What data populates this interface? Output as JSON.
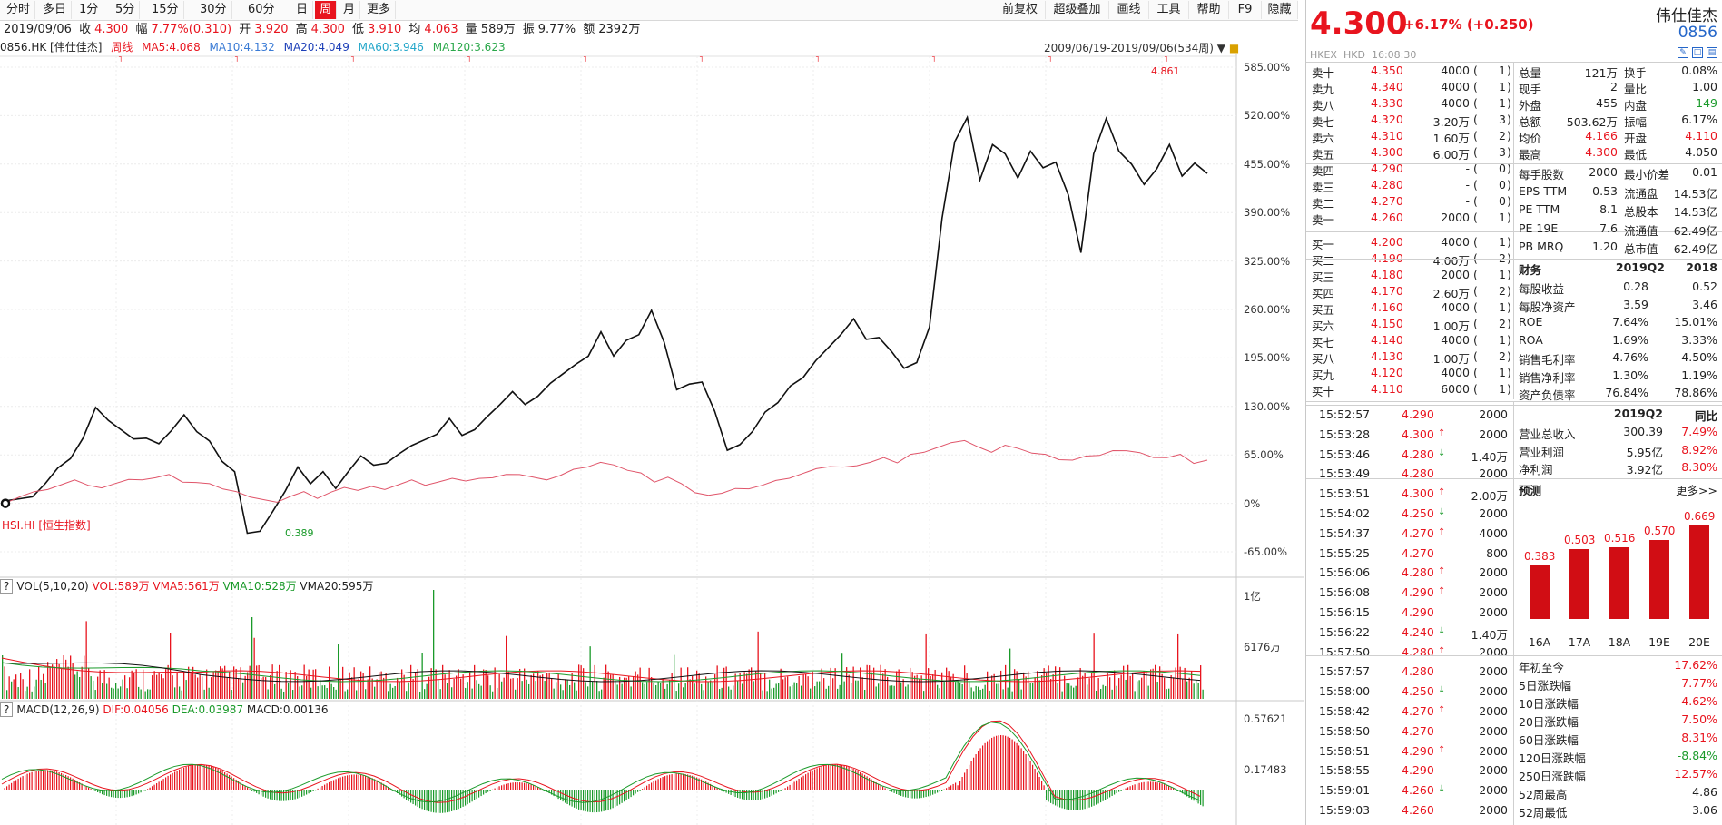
{
  "toolbar": {
    "left": [
      "分时",
      "多日",
      "1分",
      "5分",
      "15分",
      "30分",
      "60分",
      "日",
      "周",
      "月",
      "更多"
    ],
    "active": "周",
    "right": [
      "前复权",
      "超级叠加",
      "画线",
      "工具",
      "帮助",
      "F9",
      "隐藏"
    ]
  },
  "quote": {
    "date": "2019/09/06",
    "close_label": "收",
    "close": "4.300",
    "chg_label": "幅",
    "chg": "7.77%(0.310)",
    "open_label": "开",
    "open": "3.920",
    "high_label": "高",
    "high": "4.300",
    "low_label": "低",
    "low": "3.910",
    "avg_label": "均",
    "avg": "4.063",
    "vol_label": "量",
    "vol": "589万",
    "amp_label": "振",
    "amp": "9.77%",
    "amt_label": "额",
    "amt": "2392万"
  },
  "ma_legend": {
    "code": "0856.HK [伟仕佳杰]",
    "period": "周线",
    "ma5": "MA5:4.068",
    "ma10": "MA10:4.132",
    "ma20": "MA20:4.049",
    "ma60": "MA60:3.946",
    "ma120": "MA120:3.623"
  },
  "range_label": "2009/06/19-2019/09/06(534周)",
  "overlay_label": "HSI.HI [恒生指数]",
  "annotations": {
    "high": "4.861",
    "low": "0.389"
  },
  "price_axis": [
    "585.00%",
    "520.00%",
    "455.00%",
    "390.00%",
    "325.00%",
    "260.00%",
    "195.00%",
    "130.00%",
    "65.00%",
    "0%",
    "-65.00%"
  ],
  "vol_legend": {
    "q": "?",
    "name": "VOL(5,10,20)",
    "vol": "VOL:589万",
    "vma5": "VMA5:561万",
    "vma10": "VMA10:528万",
    "vma20": "VMA20:595万"
  },
  "vol_axis": [
    "1亿",
    "6176万"
  ],
  "macd_legend": {
    "q": "?",
    "name": "MACD(12,26,9)",
    "dif": "DIF:0.04056",
    "dea": "DEA:0.03987",
    "macd": "MACD:0.00136"
  },
  "macd_axis": [
    "0.57621",
    "0.17483"
  ],
  "chart_data": {
    "type": "line",
    "x_range": [
      "2009/06/19",
      "2019/09/06"
    ],
    "ylim_pct": [
      -65,
      585
    ],
    "series": [
      {
        "name": "0856.HK [伟仕佳杰]",
        "color": "#111111",
        "values": [
          0,
          5,
          10,
          30,
          45,
          60,
          90,
          125,
          110,
          100,
          90,
          85,
          80,
          100,
          115,
          95,
          85,
          60,
          40,
          -40,
          -35,
          -15,
          15,
          50,
          30,
          40,
          20,
          45,
          60,
          50,
          55,
          70,
          75,
          85,
          95,
          110,
          90,
          100,
          120,
          130,
          150,
          135,
          140,
          160,
          175,
          190,
          195,
          230,
          200,
          215,
          225,
          260,
          220,
          150,
          160,
          165,
          120,
          70,
          80,
          100,
          120,
          135,
          160,
          165,
          190,
          210,
          230,
          245,
          220,
          225,
          200,
          180,
          190,
          240,
          380,
          485,
          520,
          430,
          480,
          470,
          440,
          470,
          450,
          460,
          410,
          335,
          470,
          520,
          470,
          455,
          430,
          445,
          480,
          440,
          460,
          440
        ]
      },
      {
        "name": "HSI.HI [恒生指数]",
        "color": "#e0556a",
        "values": [
          0,
          10,
          15,
          20,
          25,
          30,
          25,
          20,
          28,
          32,
          30,
          35,
          38,
          30,
          28,
          25,
          20,
          15,
          10,
          5,
          0,
          10,
          15,
          8,
          15,
          20,
          18,
          22,
          20,
          25,
          30,
          25,
          28,
          35,
          30,
          32,
          35,
          38,
          40,
          35,
          30,
          38,
          45,
          50,
          55,
          50,
          45,
          40,
          30,
          35,
          25,
          15,
          10,
          15,
          20,
          18,
          25,
          30,
          35,
          40,
          45,
          50,
          48,
          52,
          55,
          60,
          55,
          65,
          70,
          75,
          80,
          85,
          75,
          70,
          78,
          72,
          68,
          65,
          60,
          58,
          62,
          65,
          70,
          72,
          68,
          60,
          62,
          65,
          55,
          58
        ]
      }
    ],
    "volume": {
      "ylim": [
        0,
        100000000
      ],
      "last": 5890000
    },
    "macd": {
      "dif": 0.04056,
      "dea": 0.03987,
      "macd": 0.00136
    }
  },
  "right": {
    "price": "4.300",
    "change": "+6.17% (+0.250)",
    "name": "伟仕佳杰",
    "code": "0856",
    "market": "HKEX",
    "currency": "HKD",
    "time": "16:08:30",
    "asks": [
      [
        "卖十",
        "4.350",
        "4000",
        "1"
      ],
      [
        "卖九",
        "4.340",
        "4000",
        "1"
      ],
      [
        "卖八",
        "4.330",
        "4000",
        "1"
      ],
      [
        "卖七",
        "4.320",
        "3.20万",
        "3"
      ],
      [
        "卖六",
        "4.310",
        "1.60万",
        "2"
      ],
      [
        "卖五",
        "4.300",
        "6.00万",
        "3"
      ],
      [
        "卖四",
        "4.290",
        "-",
        "0"
      ],
      [
        "卖三",
        "4.280",
        "-",
        "0"
      ],
      [
        "卖二",
        "4.270",
        "-",
        "0"
      ],
      [
        "卖一",
        "4.260",
        "2000",
        "1"
      ]
    ],
    "bids": [
      [
        "买一",
        "4.200",
        "4000",
        "1"
      ],
      [
        "买二",
        "4.190",
        "4.00万",
        "2"
      ],
      [
        "买三",
        "4.180",
        "2000",
        "1"
      ],
      [
        "买四",
        "4.170",
        "2.60万",
        "2"
      ],
      [
        "买五",
        "4.160",
        "4000",
        "1"
      ],
      [
        "买六",
        "4.150",
        "1.00万",
        "2"
      ],
      [
        "买七",
        "4.140",
        "4000",
        "1"
      ],
      [
        "买八",
        "4.130",
        "1.00万",
        "2"
      ],
      [
        "买九",
        "4.120",
        "4000",
        "1"
      ],
      [
        "买十",
        "4.110",
        "6000",
        "1"
      ]
    ],
    "stats": [
      [
        "总量",
        "121万",
        "换手",
        "0.08%"
      ],
      [
        "现手",
        "2",
        "量比",
        "1.00"
      ],
      [
        "外盘",
        "455",
        "内盘",
        "149"
      ],
      [
        "总额",
        "503.62万",
        "振幅",
        "6.17%"
      ],
      [
        "均价",
        "4.166",
        "开盘",
        "4.110"
      ],
      [
        "最高",
        "4.300",
        "最低",
        "4.050"
      ]
    ],
    "stats2": [
      [
        "每手股数",
        "2000",
        "最小价差",
        "0.01"
      ],
      [
        "EPS TTM",
        "0.53",
        "流通盘",
        "14.53亿"
      ],
      [
        "PE TTM",
        "8.1",
        "总股本",
        "14.53亿"
      ],
      [
        "PE 19E",
        "7.6",
        "流通值",
        "62.49亿"
      ],
      [
        "PB MRQ",
        "1.20",
        "总市值",
        "62.49亿"
      ]
    ],
    "fin_header": [
      "财务",
      "2019Q2",
      "2018"
    ],
    "fin": [
      [
        "每股收益",
        "0.28",
        "0.52"
      ],
      [
        "每股净资产",
        "3.59",
        "3.46"
      ],
      [
        "ROE",
        "7.64%",
        "15.01%"
      ],
      [
        "ROA",
        "1.69%",
        "3.33%"
      ],
      [
        "销售毛利率",
        "4.76%",
        "4.50%"
      ],
      [
        "销售净利率",
        "1.30%",
        "1.19%"
      ],
      [
        "资产负债率",
        "76.84%",
        "78.86%"
      ]
    ],
    "fin2_header": [
      "",
      "2019Q2",
      "同比"
    ],
    "fin2": [
      [
        "营业总收入",
        "300.39",
        "7.49%"
      ],
      [
        "营业利润",
        "5.95亿",
        "8.92%"
      ],
      [
        "净利润",
        "3.92亿",
        "8.30%"
      ]
    ],
    "forecast_title": "预测",
    "forecast_more": "更多>>",
    "forecast": [
      {
        "label": "16A",
        "value": 0.383
      },
      {
        "label": "17A",
        "value": 0.503
      },
      {
        "label": "18A",
        "value": 0.516
      },
      {
        "label": "19E",
        "value": 0.57
      },
      {
        "label": "20E",
        "value": 0.669
      }
    ],
    "perf": [
      [
        "年初至今",
        "17.62%"
      ],
      [
        "5日涨跌幅",
        "7.77%"
      ],
      [
        "10日涨跌幅",
        "4.62%"
      ],
      [
        "20日涨跌幅",
        "7.50%"
      ],
      [
        "60日涨跌幅",
        "8.31%"
      ],
      [
        "120日涨跌幅",
        "-8.84%"
      ],
      [
        "250日涨跌幅",
        "12.57%"
      ],
      [
        "52周最高",
        "4.86"
      ],
      [
        "52周最低",
        "3.06"
      ]
    ],
    "ticks": [
      [
        "15:52:57",
        "4.290",
        "",
        "2000"
      ],
      [
        "15:53:28",
        "4.300",
        "up",
        "2000"
      ],
      [
        "15:53:46",
        "4.280",
        "down",
        "1.40万"
      ],
      [
        "15:53:49",
        "4.280",
        "",
        "2000"
      ],
      [
        "15:53:51",
        "4.300",
        "up",
        "2.00万"
      ],
      [
        "15:54:02",
        "4.250",
        "down",
        "2000"
      ],
      [
        "15:54:37",
        "4.270",
        "up",
        "4000"
      ],
      [
        "15:55:25",
        "4.270",
        "",
        "800"
      ],
      [
        "15:56:06",
        "4.280",
        "up",
        "2000"
      ],
      [
        "15:56:08",
        "4.290",
        "up",
        "2000"
      ],
      [
        "15:56:15",
        "4.290",
        "",
        "2000"
      ],
      [
        "15:56:22",
        "4.240",
        "down",
        "1.40万"
      ],
      [
        "15:57:50",
        "4.280",
        "up",
        "2000"
      ],
      [
        "15:57:57",
        "4.280",
        "",
        "2000"
      ],
      [
        "15:58:00",
        "4.250",
        "down",
        "2000"
      ],
      [
        "15:58:42",
        "4.270",
        "up",
        "2000"
      ],
      [
        "15:58:50",
        "4.270",
        "",
        "2000"
      ],
      [
        "15:58:51",
        "4.290",
        "up",
        "2000"
      ],
      [
        "15:58:55",
        "4.290",
        "",
        "2000"
      ],
      [
        "15:59:01",
        "4.260",
        "down",
        "2000"
      ],
      [
        "15:59:03",
        "4.260",
        "",
        "2000"
      ]
    ]
  }
}
